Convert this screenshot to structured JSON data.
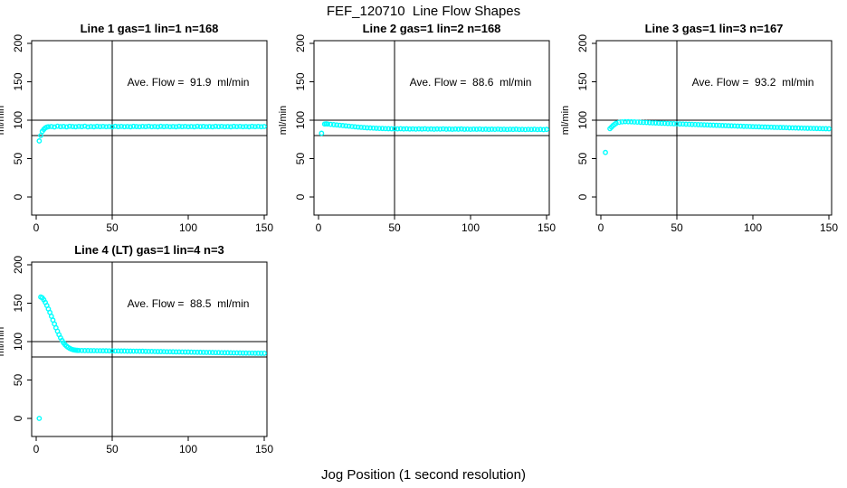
{
  "figure": {
    "title": "FEF_120710  Line Flow Shapes",
    "xlabel": "Jog Position (1 second resolution)",
    "background": "#FFFFFF"
  },
  "style": {
    "point_color": "#00FFFF",
    "line_color": "#000000"
  },
  "chart_data": [
    {
      "type": "scatter",
      "title": "Line 1 gas=1 lin=1 n=168",
      "annotation": "Ave. Flow =  91.9  ml/min",
      "ave_flow_ml_min": 91.9,
      "n": 168,
      "ylabel": "ml/min",
      "xlim": [
        0,
        150
      ],
      "ylim": [
        0,
        200
      ],
      "xticks": [
        0,
        50,
        100,
        150
      ],
      "yticks": [
        0,
        50,
        100,
        150,
        200
      ],
      "ref_hlines": [
        80,
        100
      ],
      "ref_vline": 50,
      "grid": false,
      "points": [
        [
          2,
          73
        ],
        [
          3,
          80
        ],
        [
          4,
          85.5
        ],
        [
          5,
          88
        ],
        [
          6,
          90
        ],
        [
          7,
          91
        ],
        [
          8,
          91.5
        ],
        [
          10,
          91.8
        ],
        [
          12,
          91.2
        ],
        [
          14,
          92.2
        ],
        [
          16,
          91.6
        ],
        [
          18,
          91.9
        ],
        [
          20,
          91.3
        ],
        [
          22,
          92.1
        ],
        [
          24,
          91.7
        ],
        [
          26,
          91.4
        ],
        [
          28,
          91.9
        ],
        [
          30,
          91.6
        ],
        [
          32,
          92.2
        ],
        [
          34,
          91.3
        ],
        [
          36,
          91.8
        ],
        [
          38,
          91.4
        ],
        [
          40,
          92
        ],
        [
          42,
          91.6
        ],
        [
          44,
          91.9
        ],
        [
          46,
          91.5
        ],
        [
          48,
          91.8
        ],
        [
          50,
          91.3
        ],
        [
          52,
          92.1
        ],
        [
          54,
          91.6
        ],
        [
          56,
          91.9
        ],
        [
          58,
          91.5
        ],
        [
          60,
          91.8
        ],
        [
          62,
          91.4
        ],
        [
          64,
          92
        ],
        [
          66,
          91.7
        ],
        [
          68,
          91.5
        ],
        [
          70,
          91.9
        ],
        [
          72,
          91.6
        ],
        [
          74,
          92.1
        ],
        [
          76,
          91.5
        ],
        [
          78,
          91.8
        ],
        [
          80,
          91.4
        ],
        [
          82,
          92
        ],
        [
          84,
          91.6
        ],
        [
          86,
          91.9
        ],
        [
          88,
          91.5
        ],
        [
          90,
          91.8
        ],
        [
          92,
          91.4
        ],
        [
          94,
          92
        ],
        [
          96,
          91.6
        ],
        [
          98,
          91.9
        ],
        [
          100,
          91.5
        ],
        [
          102,
          91.8
        ],
        [
          104,
          91.4
        ],
        [
          106,
          92
        ],
        [
          108,
          91.6
        ],
        [
          110,
          91.9
        ],
        [
          112,
          91.5
        ],
        [
          114,
          91.8
        ],
        [
          116,
          91.4
        ],
        [
          118,
          92
        ],
        [
          120,
          91.6
        ],
        [
          122,
          91.9
        ],
        [
          124,
          91.5
        ],
        [
          126,
          91.8
        ],
        [
          128,
          91.4
        ],
        [
          130,
          92
        ],
        [
          132,
          91.6
        ],
        [
          134,
          91.9
        ],
        [
          136,
          91.5
        ],
        [
          138,
          91.8
        ],
        [
          140,
          91.4
        ],
        [
          142,
          92
        ],
        [
          144,
          91.6
        ],
        [
          146,
          91.9
        ],
        [
          148,
          91.5
        ],
        [
          150,
          91.8
        ]
      ]
    },
    {
      "type": "scatter",
      "title": "Line 2 gas=1 lin=2 n=168",
      "annotation": "Ave. Flow =  88.6  ml/min",
      "ave_flow_ml_min": 88.6,
      "n": 168,
      "ylabel": "ml/min",
      "xlim": [
        0,
        150
      ],
      "ylim": [
        0,
        200
      ],
      "xticks": [
        0,
        50,
        100,
        150
      ],
      "yticks": [
        0,
        50,
        100,
        150,
        200
      ],
      "ref_hlines": [
        80,
        100
      ],
      "ref_vline": 50,
      "grid": false,
      "points": [
        [
          2,
          83
        ],
        [
          4,
          95
        ],
        [
          5,
          95.3
        ],
        [
          6,
          95
        ],
        [
          8,
          94.6
        ],
        [
          10,
          94.2
        ],
        [
          12,
          93.8
        ],
        [
          14,
          93.4
        ],
        [
          16,
          93
        ],
        [
          18,
          92.6
        ],
        [
          20,
          92.2
        ],
        [
          22,
          91.8
        ],
        [
          24,
          91.4
        ],
        [
          26,
          91
        ],
        [
          28,
          90.7
        ],
        [
          30,
          90.4
        ],
        [
          32,
          90.1
        ],
        [
          34,
          89.9
        ],
        [
          36,
          89.7
        ],
        [
          38,
          89.5
        ],
        [
          40,
          89.3
        ],
        [
          42,
          89.2
        ],
        [
          44,
          89
        ],
        [
          46,
          88.9
        ],
        [
          48,
          88.8
        ],
        [
          50,
          88.8
        ],
        [
          52,
          88.7
        ],
        [
          54,
          88.9
        ],
        [
          56,
          88.6
        ],
        [
          58,
          88.8
        ],
        [
          60,
          88.5
        ],
        [
          62,
          88.7
        ],
        [
          64,
          88.4
        ],
        [
          66,
          88.7
        ],
        [
          68,
          88.5
        ],
        [
          70,
          88.8
        ],
        [
          72,
          88.4
        ],
        [
          74,
          88.6
        ],
        [
          76,
          88.3
        ],
        [
          78,
          88.6
        ],
        [
          80,
          88.4
        ],
        [
          82,
          88.7
        ],
        [
          84,
          88.3
        ],
        [
          86,
          88.5
        ],
        [
          88,
          88.2
        ],
        [
          90,
          88.5
        ],
        [
          92,
          88.3
        ],
        [
          94,
          88.6
        ],
        [
          96,
          88.2
        ],
        [
          98,
          88.4
        ],
        [
          100,
          88.1
        ],
        [
          102,
          88.4
        ],
        [
          104,
          88.2
        ],
        [
          106,
          88.5
        ],
        [
          108,
          88.1
        ],
        [
          110,
          88.3
        ],
        [
          112,
          88
        ],
        [
          114,
          88.3
        ],
        [
          116,
          88.1
        ],
        [
          118,
          88.4
        ],
        [
          120,
          88
        ],
        [
          122,
          88.2
        ],
        [
          124,
          87.9
        ],
        [
          126,
          88.2
        ],
        [
          128,
          88
        ],
        [
          130,
          88.3
        ],
        [
          132,
          87.9
        ],
        [
          134,
          88.1
        ],
        [
          136,
          87.8
        ],
        [
          138,
          88.1
        ],
        [
          140,
          87.9
        ],
        [
          142,
          88.2
        ],
        [
          144,
          87.8
        ],
        [
          146,
          88
        ],
        [
          148,
          87.7
        ],
        [
          150,
          88
        ]
      ]
    },
    {
      "type": "scatter",
      "title": "Line 3 gas=1 lin=3 n=167",
      "annotation": "Ave. Flow =  93.2  ml/min",
      "ave_flow_ml_min": 93.2,
      "n": 167,
      "ylabel": "ml/min",
      "xlim": [
        0,
        150
      ],
      "ylim": [
        0,
        200
      ],
      "xticks": [
        0,
        50,
        100,
        150
      ],
      "yticks": [
        0,
        50,
        100,
        150,
        200
      ],
      "ref_hlines": [
        80,
        100
      ],
      "ref_vline": 50,
      "grid": false,
      "points": [
        [
          3,
          58
        ],
        [
          6,
          89
        ],
        [
          7,
          91
        ],
        [
          8,
          93
        ],
        [
          9,
          94.5
        ],
        [
          10,
          96
        ],
        [
          12,
          97.2
        ],
        [
          14,
          97.8
        ],
        [
          16,
          98.1
        ],
        [
          18,
          98
        ],
        [
          20,
          97.9
        ],
        [
          22,
          97.7
        ],
        [
          24,
          97.5
        ],
        [
          26,
          97.3
        ],
        [
          28,
          97.1
        ],
        [
          30,
          96.9
        ],
        [
          32,
          96.7
        ],
        [
          34,
          96.5
        ],
        [
          36,
          96.4
        ],
        [
          38,
          96.2
        ],
        [
          40,
          96
        ],
        [
          42,
          95.9
        ],
        [
          44,
          95.7
        ],
        [
          46,
          95.6
        ],
        [
          48,
          95.4
        ],
        [
          50,
          95.3
        ],
        [
          52,
          95.1
        ],
        [
          54,
          95
        ],
        [
          56,
          94.8
        ],
        [
          58,
          94.7
        ],
        [
          60,
          94.5
        ],
        [
          62,
          94.4
        ],
        [
          64,
          94.2
        ],
        [
          66,
          94.1
        ],
        [
          68,
          93.9
        ],
        [
          70,
          93.8
        ],
        [
          72,
          93.6
        ],
        [
          74,
          93.5
        ],
        [
          76,
          93.3
        ],
        [
          78,
          93.2
        ],
        [
          80,
          93
        ],
        [
          82,
          92.9
        ],
        [
          84,
          92.7
        ],
        [
          86,
          92.6
        ],
        [
          88,
          92.5
        ],
        [
          90,
          92.3
        ],
        [
          92,
          92.2
        ],
        [
          94,
          92
        ],
        [
          96,
          91.9
        ],
        [
          98,
          91.8
        ],
        [
          100,
          91.6
        ],
        [
          102,
          91.5
        ],
        [
          104,
          91.4
        ],
        [
          106,
          91.2
        ],
        [
          108,
          91.1
        ],
        [
          110,
          91
        ],
        [
          112,
          90.9
        ],
        [
          114,
          90.7
        ],
        [
          116,
          90.6
        ],
        [
          118,
          90.5
        ],
        [
          120,
          90.4
        ],
        [
          122,
          90.3
        ],
        [
          124,
          90.1
        ],
        [
          126,
          90
        ],
        [
          128,
          89.9
        ],
        [
          130,
          89.8
        ],
        [
          132,
          89.7
        ],
        [
          134,
          89.6
        ],
        [
          136,
          89.5
        ],
        [
          138,
          89.4
        ],
        [
          140,
          89.3
        ],
        [
          142,
          89.2
        ],
        [
          144,
          89.1
        ],
        [
          146,
          89
        ],
        [
          148,
          88.9
        ],
        [
          150,
          88.8
        ]
      ]
    },
    {
      "type": "scatter",
      "title": "Line 4 (LT) gas=1 lin=4 n=3",
      "annotation": "Ave. Flow =  88.5  ml/min",
      "ave_flow_ml_min": 88.5,
      "n": 3,
      "ylabel": "ml/min",
      "xlim": [
        0,
        150
      ],
      "ylim": [
        0,
        200
      ],
      "xticks": [
        0,
        50,
        100,
        150
      ],
      "yticks": [
        0,
        50,
        100,
        150,
        200
      ],
      "ref_hlines": [
        80,
        100
      ],
      "ref_vline": 50,
      "grid": false,
      "points": [
        [
          2,
          0
        ],
        [
          3,
          158
        ],
        [
          4,
          157
        ],
        [
          5,
          154.5
        ],
        [
          6,
          151
        ],
        [
          7,
          147
        ],
        [
          8,
          142.5
        ],
        [
          9,
          138
        ],
        [
          10,
          133
        ],
        [
          11,
          128
        ],
        [
          12,
          123
        ],
        [
          13,
          118
        ],
        [
          14,
          113.5
        ],
        [
          15,
          109
        ],
        [
          16,
          105
        ],
        [
          17,
          101.5
        ],
        [
          18,
          98.5
        ],
        [
          19,
          96
        ],
        [
          20,
          94
        ],
        [
          21,
          92.5
        ],
        [
          22,
          91.3
        ],
        [
          23,
          90.3
        ],
        [
          24,
          89.6
        ],
        [
          25,
          89.1
        ],
        [
          26,
          88.8
        ],
        [
          27,
          88.6
        ],
        [
          28,
          88.5
        ],
        [
          30,
          88.4
        ],
        [
          32,
          88.3
        ],
        [
          34,
          88.3
        ],
        [
          36,
          88.2
        ],
        [
          38,
          88.2
        ],
        [
          40,
          88.1
        ],
        [
          42,
          88.1
        ],
        [
          44,
          88
        ],
        [
          46,
          88
        ],
        [
          48,
          87.9
        ],
        [
          50,
          87.9
        ],
        [
          52,
          87.8
        ],
        [
          54,
          87.8
        ],
        [
          56,
          87.7
        ],
        [
          58,
          87.7
        ],
        [
          60,
          87.6
        ],
        [
          62,
          87.6
        ],
        [
          64,
          87.5
        ],
        [
          66,
          87.5
        ],
        [
          68,
          87.4
        ],
        [
          70,
          87.4
        ],
        [
          72,
          87.3
        ],
        [
          74,
          87.2
        ],
        [
          76,
          87.2
        ],
        [
          78,
          87.1
        ],
        [
          80,
          87
        ],
        [
          82,
          87
        ],
        [
          84,
          86.9
        ],
        [
          86,
          86.8
        ],
        [
          88,
          86.8
        ],
        [
          90,
          86.7
        ],
        [
          92,
          86.6
        ],
        [
          94,
          86.6
        ],
        [
          96,
          86.5
        ],
        [
          98,
          86.4
        ],
        [
          100,
          86.4
        ],
        [
          102,
          86.3
        ],
        [
          104,
          86.2
        ],
        [
          106,
          86.1
        ],
        [
          108,
          86.1
        ],
        [
          110,
          86
        ],
        [
          112,
          85.9
        ],
        [
          114,
          85.9
        ],
        [
          116,
          85.8
        ],
        [
          118,
          85.7
        ],
        [
          120,
          85.7
        ],
        [
          122,
          85.6
        ],
        [
          124,
          85.5
        ],
        [
          126,
          85.5
        ],
        [
          128,
          85.4
        ],
        [
          130,
          85.3
        ],
        [
          132,
          85.3
        ],
        [
          134,
          85.2
        ],
        [
          136,
          85.1
        ],
        [
          138,
          85.1
        ],
        [
          140,
          85
        ],
        [
          142,
          85
        ],
        [
          144,
          84.9
        ],
        [
          146,
          84.9
        ],
        [
          148,
          84.8
        ],
        [
          150,
          84.8
        ]
      ]
    }
  ]
}
